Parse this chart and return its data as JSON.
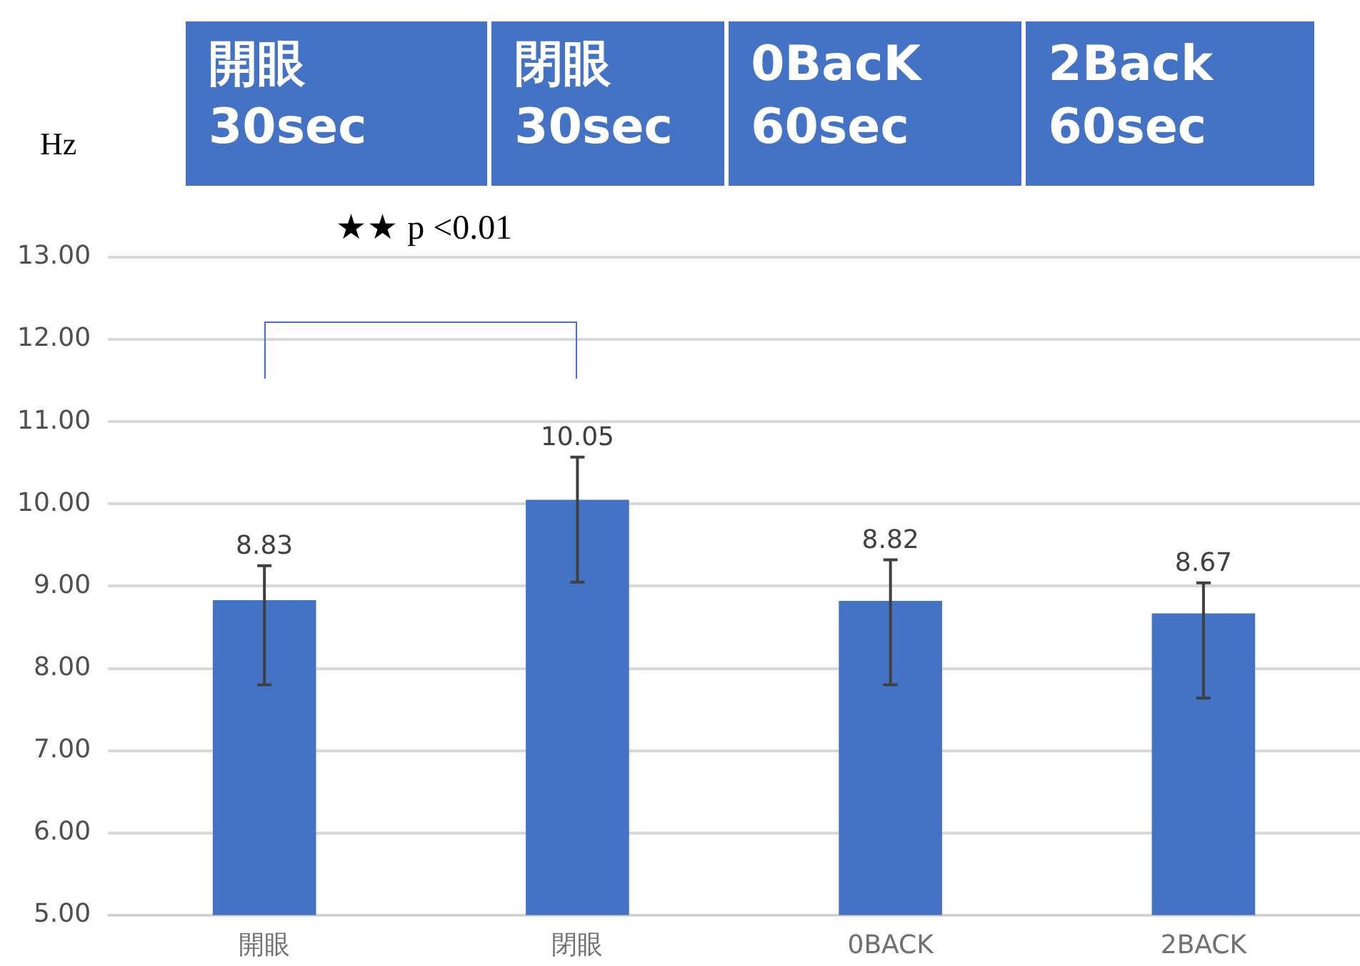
{
  "chart_data": {
    "type": "bar",
    "ylabel": "Hz",
    "categories": [
      "開眼",
      "閉眼",
      "0BACK",
      "2BACK"
    ],
    "values": [
      8.83,
      10.05,
      8.82,
      8.67
    ],
    "color": "#4472c4",
    "errors": [
      [
        7.8,
        9.25
      ],
      [
        9.05,
        10.57
      ],
      [
        7.8,
        9.32
      ],
      [
        7.64,
        9.04
      ]
    ],
    "ylim": [
      5,
      13
    ],
    "yticks": [
      {
        "value": 5,
        "label": "5.00"
      },
      {
        "value": 6,
        "label": "6.00"
      },
      {
        "value": 7,
        "label": "7.00"
      },
      {
        "value": 8,
        "label": "8.00"
      },
      {
        "value": 9,
        "label": "9.00"
      },
      {
        "value": 10,
        "label": "10.00"
      },
      {
        "value": 11,
        "label": "11.00"
      },
      {
        "value": 12,
        "label": "12.00"
      },
      {
        "value": 13,
        "label": "13.00"
      }
    ],
    "grid": "y",
    "data_labels": true,
    "legend": false,
    "annotations": [
      "★★ p <0.01",
      "開眼\n30sec",
      "閉眼\n30sec",
      "0BacK\n60sec",
      "2Back\n60sec"
    ]
  }
}
